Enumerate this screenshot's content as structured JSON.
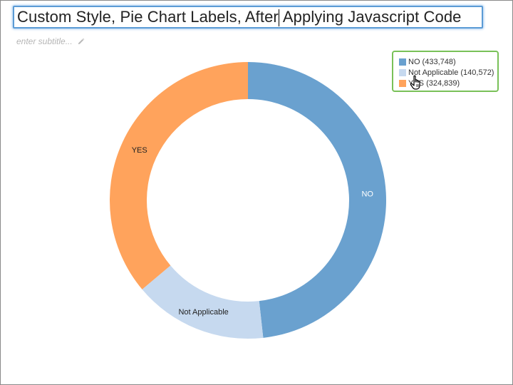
{
  "header": {
    "title_before_caret": "Custom Style, Pie Chart Labels, After",
    "title_after_caret": " Applying Javascript Code",
    "subtitle_placeholder": "enter subtitle...",
    "edit_icon": "pencil-icon"
  },
  "legend": {
    "items": [
      {
        "label": "NO (433,748)",
        "color": "#6aa1cf"
      },
      {
        "label": "Not Applicable (140,572)",
        "color": "#c6d9ef"
      },
      {
        "label": "YES (324,839)",
        "color": "#ffa35c"
      }
    ]
  },
  "cursor_icon": "hand-pointer-icon",
  "chart_data": {
    "type": "pie",
    "subtype": "donut",
    "categories": [
      "NO",
      "Not Applicable",
      "YES"
    ],
    "values": [
      433748,
      140572,
      324839
    ],
    "colors": [
      "#6aa1cf",
      "#c6d9ef",
      "#ffa35c"
    ],
    "slice_labels": [
      "NO",
      "Not Applicable",
      "YES"
    ],
    "label_colors": [
      "#ffffff",
      "#222222",
      "#222222"
    ],
    "legend_placement": "top-right"
  }
}
